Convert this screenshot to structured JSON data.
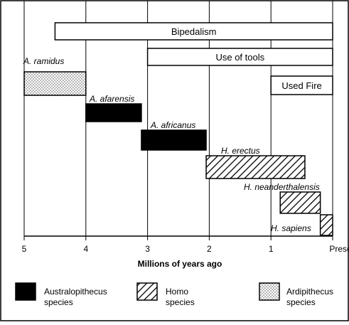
{
  "chart_data": {
    "type": "bar",
    "xlabel": "Millions of years ago",
    "xlim": [
      5,
      0
    ],
    "tick_labels": [
      "5",
      "4",
      "3",
      "2",
      "1",
      "Present"
    ],
    "tick_values": [
      5,
      4,
      3,
      2,
      1,
      0
    ],
    "grid": true,
    "legend_placement": "bottom",
    "traits": [
      {
        "name": "Bipedalism",
        "start": 4.5,
        "end": 0
      },
      {
        "name": "Use of tools",
        "start": 3.0,
        "end": 0
      },
      {
        "name": "Used Fire",
        "start": 1.0,
        "end": 0
      }
    ],
    "species": [
      {
        "name": "A. ramidus",
        "group": "Ardipithecus",
        "start": 5.0,
        "end": 4.0
      },
      {
        "name": "A. afarensis",
        "group": "Australopithecus",
        "start": 4.0,
        "end": 3.1
      },
      {
        "name": "A. africanus",
        "group": "Australopithecus",
        "start": 3.1,
        "end": 2.05
      },
      {
        "name": "H. erectus",
        "group": "Homo",
        "start": 2.05,
        "end": 0.45
      },
      {
        "name": "H. neanderthalensis",
        "group": "Homo",
        "start": 0.85,
        "end": 0.2
      },
      {
        "name": "H. sapiens",
        "group": "Homo",
        "start": 0.2,
        "end": 0
      }
    ],
    "legend": [
      {
        "group": "Australopithecus",
        "label_line1": "Australopithecus",
        "label_line2": "species",
        "pattern": "solid-black"
      },
      {
        "group": "Homo",
        "label_line1": "Homo",
        "label_line2": "species",
        "pattern": "diagonal-hatch"
      },
      {
        "group": "Ardipithecus",
        "label_line1": "Ardipithecus",
        "label_line2": "species",
        "pattern": "dotted"
      }
    ]
  }
}
